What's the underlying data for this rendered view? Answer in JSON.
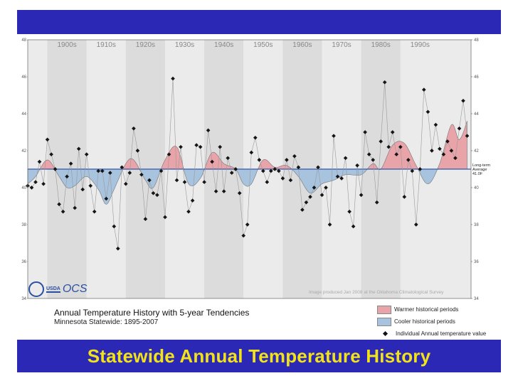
{
  "slide": {
    "title": "Statewide Annual Temperature History",
    "colors": {
      "bar": "#2a28b4",
      "title": "#f2e21a",
      "warm": "#e8a4a8",
      "cool": "#a7c3dd",
      "band_dark": "#dcdcdc",
      "band_light": "#ebebeb"
    }
  },
  "logo": {
    "usda": "USDA",
    "ocs": "OCS"
  },
  "credit": "Image produced Jan 2008 at the Oklahoma Climatological Survey",
  "caption": {
    "title": "Annual Temperature History with 5-year Tendencies",
    "subtitle": "Minnesota Statewide: 1895-2007"
  },
  "legend": {
    "warm": "Warmer historical periods",
    "cool": "Cooler historical periods",
    "points": "Individual Annual temperature value"
  },
  "chart_data": {
    "type": "line",
    "title": "Annual Temperature History with 5-year Tendencies",
    "subtitle": "Minnesota Statewide: 1895-2007",
    "x_range": [
      1895,
      2008
    ],
    "ylim": [
      34,
      48
    ],
    "y_ticks": [
      34,
      36,
      38,
      40,
      42,
      44,
      46,
      48
    ],
    "decades": [
      "1900s",
      "1910s",
      "1920s",
      "1930s",
      "1940s",
      "1950s",
      "1960s",
      "1970s",
      "1980s",
      "1990s"
    ],
    "baseline": 41.0,
    "baseline_label": [
      "Long-term",
      "Average",
      "41.0F"
    ],
    "annual": {
      "years": [
        1895,
        1896,
        1897,
        1898,
        1899,
        1900,
        1901,
        1902,
        1903,
        1904,
        1905,
        1906,
        1907,
        1908,
        1909,
        1910,
        1911,
        1912,
        1913,
        1914,
        1915,
        1916,
        1917,
        1918,
        1919,
        1920,
        1921,
        1922,
        1923,
        1924,
        1925,
        1926,
        1927,
        1928,
        1929,
        1930,
        1931,
        1932,
        1933,
        1934,
        1935,
        1936,
        1937,
        1938,
        1939,
        1940,
        1941,
        1942,
        1943,
        1944,
        1945,
        1946,
        1947,
        1948,
        1949,
        1950,
        1951,
        1952,
        1953,
        1954,
        1955,
        1956,
        1957,
        1958,
        1959,
        1960,
        1961,
        1962,
        1963,
        1964,
        1965,
        1966,
        1967,
        1968,
        1969,
        1970,
        1971,
        1972,
        1973,
        1974,
        1975,
        1976,
        1977,
        1978,
        1979,
        1980,
        1981,
        1982,
        1983,
        1984,
        1985,
        1986,
        1987,
        1988,
        1989,
        1990,
        1991,
        1992,
        1993,
        1994,
        1995,
        1996,
        1997,
        1998,
        1999,
        2000,
        2001,
        2002,
        2003,
        2004,
        2005,
        2006,
        2007
      ],
      "values": [
        40.1,
        40.0,
        40.3,
        41.4,
        40.2,
        42.6,
        41.8,
        41.0,
        39.1,
        38.7,
        40.6,
        41.3,
        38.9,
        42.1,
        39.9,
        41.8,
        40.1,
        38.7,
        40.9,
        40.9,
        39.4,
        40.8,
        37.9,
        36.7,
        41.1,
        40.2,
        40.8,
        43.2,
        42.0,
        40.7,
        38.3,
        40.4,
        39.7,
        39.6,
        40.9,
        38.4,
        41.8,
        45.9,
        40.4,
        42.2,
        40.3,
        38.7,
        39.3,
        42.3,
        42.2,
        40.3,
        43.1,
        41.4,
        39.8,
        42.2,
        39.8,
        41.6,
        40.8,
        41.0,
        39.7,
        37.4,
        38.0,
        41.9,
        42.7,
        41.5,
        40.9,
        40.3,
        40.9,
        41.0,
        40.9,
        40.5,
        41.5,
        40.4,
        41.7,
        41.1,
        38.8,
        39.2,
        39.5,
        40.0,
        41.1,
        39.6,
        40.0,
        38.0,
        42.8,
        40.6,
        40.5,
        41.6,
        38.7,
        37.9,
        41.2,
        39.6,
        43.0,
        41.8,
        41.5,
        39.2,
        42.5,
        45.7,
        42.2,
        43.0,
        41.8,
        42.2,
        39.5,
        41.5,
        40.9,
        38.0,
        41.0,
        45.3,
        44.1,
        42.0,
        43.4,
        42.1,
        41.8,
        42.5,
        42.0,
        41.6,
        43.2,
        44.7,
        42.8
      ]
    },
    "tendency": {
      "x": [
        1895,
        1897,
        1900,
        1903,
        1905,
        1907,
        1910,
        1913,
        1915,
        1917,
        1920,
        1922,
        1925,
        1927,
        1930,
        1933,
        1936,
        1939,
        1942,
        1945,
        1948,
        1950,
        1952,
        1955,
        1958,
        1961,
        1964,
        1967,
        1970,
        1973,
        1976,
        1980,
        1983,
        1985,
        1988,
        1991,
        1994,
        1997,
        2000,
        2003,
        2005,
        2007
      ],
      "values": [
        40.2,
        40.6,
        41.5,
        40.6,
        40.0,
        40.1,
        40.6,
        39.9,
        39.1,
        39.9,
        41.3,
        41.5,
        40.4,
        40.0,
        41.5,
        42.2,
        40.2,
        40.5,
        41.9,
        41.3,
        41.0,
        40.2,
        40.2,
        41.5,
        41.1,
        41.2,
        40.6,
        39.7,
        40.2,
        40.4,
        40.7,
        40.7,
        41.3,
        41.0,
        42.3,
        42.4,
        41.2,
        40.2,
        41.3,
        43.4,
        42.6,
        43.6
      ]
    },
    "legend": [
      "Warmer historical periods",
      "Cooler historical periods",
      "Individual Annual temperature value"
    ]
  }
}
